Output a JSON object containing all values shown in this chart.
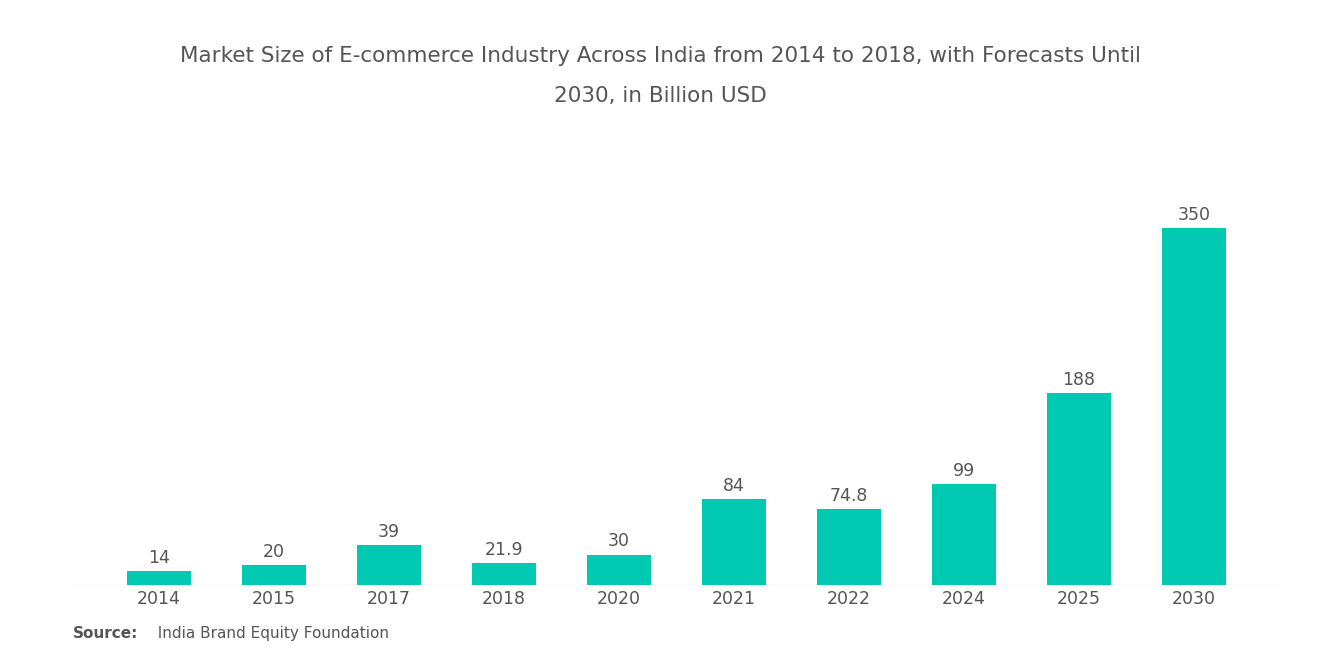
{
  "title_line1": "Market Size of E-commerce Industry Across India from 2014 to 2018, with Forecasts Until",
  "title_line2": "2030, in Billion USD",
  "categories": [
    "2014",
    "2015",
    "2017",
    "2018",
    "2020",
    "2021",
    "2022",
    "2024",
    "2025",
    "2030"
  ],
  "values": [
    14,
    20,
    39,
    21.9,
    30,
    84,
    74.8,
    99,
    188,
    350
  ],
  "bar_color": "#00C9B1",
  "label_color": "#555555",
  "title_color": "#555555",
  "background_color": "#FFFFFF",
  "source_bold": "Source:",
  "source_normal": "  India Brand Equity Foundation",
  "title_fontsize": 15.5,
  "label_fontsize": 12.5,
  "tick_fontsize": 12.5,
  "source_fontsize": 11,
  "ylim": [
    0,
    430
  ],
  "bar_width": 0.55
}
